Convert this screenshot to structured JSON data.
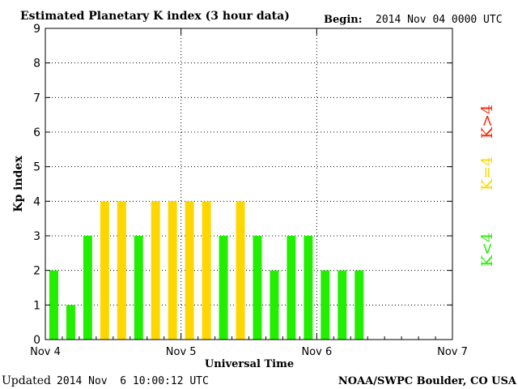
{
  "chart_data": {
    "type": "bar",
    "title": "Estimated Planetary K index (3 hour data)",
    "begin_label": "Begin:",
    "begin_value": "2014 Nov 04 0000 UTC",
    "xlabel": "Universal Time",
    "ylabel": "Kp index",
    "ylim": [
      0,
      9
    ],
    "yticks": [
      "0",
      "1",
      "2",
      "3",
      "4",
      "5",
      "6",
      "7",
      "8",
      "9"
    ],
    "xticks": [
      "Nov 4",
      "Nov 5",
      "Nov 6",
      "Nov 7"
    ],
    "bins_per_day": 8,
    "days": 3,
    "values": [
      2,
      1,
      3,
      4,
      4,
      3,
      4,
      4,
      4,
      4,
      3,
      4,
      3,
      2,
      3,
      3,
      2,
      2,
      2
    ],
    "thresholds": {
      "green_max_exclusive": 4,
      "yellow_equal": 4
    },
    "legend": [
      {
        "label": "K<4",
        "color": "#22ee00"
      },
      {
        "label": "K=4",
        "color": "#ffd700"
      },
      {
        "label": "K>4",
        "color": "#ff2200"
      }
    ],
    "grid": true,
    "colors": {
      "green": "#22ee00",
      "yellow": "#ffd700",
      "red": "#ff2200"
    }
  },
  "footer": {
    "updated_label": "Updated",
    "updated_value": "2014 Nov  6 10:00:12 UTC",
    "credit": "NOAA/SWPC Boulder, CO USA"
  }
}
